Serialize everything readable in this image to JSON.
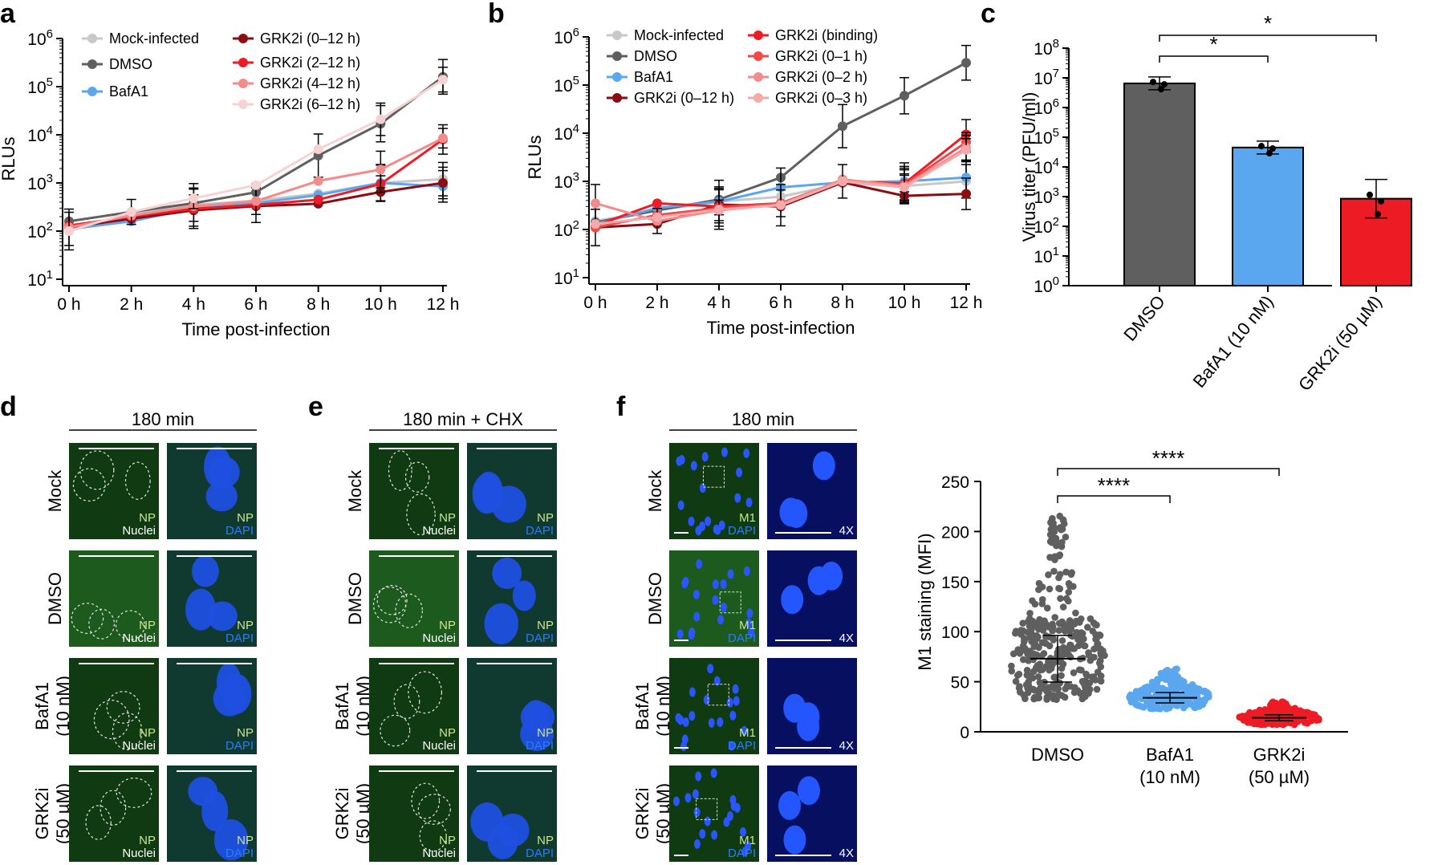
{
  "panels": [
    "a",
    "b",
    "c",
    "d",
    "e",
    "f"
  ],
  "colors": {
    "mock": "#c8c8c8",
    "dmso": "#5f5f5f",
    "bafa1": "#5aa7f0",
    "grk_dark": "#8b0d14",
    "grk_red": "#ed1c24",
    "grk_salmon": "#f28c8c",
    "grk_pale": "#f7d2d2",
    "grk_mid": "#ee4a4a",
    "np_green": "#c8e68c",
    "dapi_blue": "#2a7cff"
  },
  "time_labels": [
    "0 h",
    "2 h",
    "4 h",
    "6 h",
    "8 h",
    "10 h",
    "12 h"
  ],
  "log_ticks": [
    {
      "base": "10",
      "exp": "1"
    },
    {
      "base": "10",
      "exp": "2"
    },
    {
      "base": "10",
      "exp": "3"
    },
    {
      "base": "10",
      "exp": "4"
    },
    {
      "base": "10",
      "exp": "5"
    },
    {
      "base": "10",
      "exp": "6"
    }
  ],
  "c_ticks": [
    {
      "base": "10",
      "exp": "0"
    },
    {
      "base": "10",
      "exp": "1"
    },
    {
      "base": "10",
      "exp": "2"
    },
    {
      "base": "10",
      "exp": "3"
    },
    {
      "base": "10",
      "exp": "4"
    },
    {
      "base": "10",
      "exp": "5"
    },
    {
      "base": "10",
      "exp": "6"
    },
    {
      "base": "10",
      "exp": "7"
    },
    {
      "base": "10",
      "exp": "8"
    }
  ],
  "chart_data": [
    {
      "id": "a",
      "type": "line",
      "ylabel": "RLUs",
      "xlabel": "Time post-infection",
      "yscale": "log",
      "ylim": [
        10,
        1000000
      ],
      "x": [
        0,
        2,
        4,
        6,
        8,
        10,
        12
      ],
      "series": [
        {
          "name": "Mock-infected",
          "color": "#c8c8c8",
          "values": [
            100,
            230,
            350,
            430,
            600,
            1000,
            1200
          ]
        },
        {
          "name": "DMSO",
          "color": "#5f5f5f",
          "values": [
            160,
            250,
            380,
            640,
            3700,
            17000,
            160000
          ]
        },
        {
          "name": "BafA1",
          "color": "#5aa7f0",
          "values": [
            110,
            160,
            300,
            380,
            560,
            1000,
            850
          ]
        },
        {
          "name": "GRK2i (0–12 h)",
          "color": "#8b0d14",
          "values": [
            120,
            180,
            270,
            330,
            370,
            650,
            1000
          ]
        },
        {
          "name": "GRK2i (2–12 h)",
          "color": "#ed1c24",
          "values": [
            130,
            200,
            290,
            350,
            450,
            950,
            8000
          ]
        },
        {
          "name": "GRK2i (4–12 h)",
          "color": "#f28c8c",
          "values": [
            120,
            210,
            330,
            420,
            1100,
            1900,
            8500
          ]
        },
        {
          "name": "GRK2i (6–12 h)",
          "color": "#f7d2d2",
          "values": [
            100,
            250,
            480,
            900,
            5000,
            21000,
            140000
          ]
        }
      ]
    },
    {
      "id": "b",
      "type": "line",
      "ylabel": "RLUs",
      "xlabel": "Time post-infection",
      "yscale": "log",
      "ylim": [
        10,
        1000000
      ],
      "x": [
        0,
        2,
        4,
        6,
        8,
        10,
        12
      ],
      "series": [
        {
          "name": "Mock-infected",
          "color": "#c8c8c8",
          "values": [
            150,
            250,
            380,
            480,
            900,
            800,
            1000
          ]
        },
        {
          "name": "DMSO",
          "color": "#5f5f5f",
          "values": [
            140,
            250,
            420,
            1200,
            14000,
            60000,
            290000
          ]
        },
        {
          "name": "BafA1",
          "color": "#5aa7f0",
          "values": [
            130,
            280,
            380,
            750,
            950,
            1000,
            1200
          ]
        },
        {
          "name": "GRK2i (0–12 h)",
          "color": "#8b0d14",
          "values": [
            110,
            130,
            330,
            300,
            950,
            500,
            550
          ]
        },
        {
          "name": "GRK2i (binding)",
          "color": "#ed1c24",
          "values": [
            120,
            350,
            300,
            350,
            1000,
            900,
            9500
          ]
        },
        {
          "name": "GRK2i (0–1 h)",
          "color": "#ee4a4a",
          "values": [
            110,
            200,
            280,
            350,
            1050,
            850,
            6500
          ]
        },
        {
          "name": "GRK2i (0–2 h)",
          "color": "#f28c8c",
          "values": [
            350,
            150,
            250,
            330,
            1100,
            800,
            5000
          ]
        },
        {
          "name": "GRK2i (0–3 h)",
          "color": "#f4aaaa",
          "values": [
            130,
            180,
            260,
            320,
            1000,
            750,
            4500
          ]
        }
      ]
    },
    {
      "id": "c",
      "type": "bar",
      "ylabel": "Virus titer (PFU/ml)",
      "yscale": "log",
      "ylim": [
        1,
        100000000
      ],
      "categories": [
        "DMSO",
        "BafA1 (10 nM)",
        "GRK2i (50 µM)"
      ],
      "values": [
        6500000,
        45000,
        850
      ],
      "colors": [
        "#5f5f5f",
        "#5aa7f0",
        "#ed1c24"
      ],
      "significance": [
        "*",
        "*"
      ]
    },
    {
      "id": "f",
      "type": "scatter",
      "ylabel": "M1 staining (MFI)",
      "ylim": [
        0,
        250
      ],
      "yticks": [
        "0",
        "50",
        "100",
        "150",
        "200",
        "250"
      ],
      "categories": [
        "DMSO",
        "BafA1 (10 nM)",
        "GRK2i (50 µM)"
      ],
      "medians": [
        73,
        34,
        14
      ],
      "ranges": [
        [
          22,
          216
        ],
        [
          20,
          63
        ],
        [
          5,
          30
        ]
      ],
      "colors": [
        "#5f5f5f",
        "#5aa7f0",
        "#ed1c24"
      ],
      "significance": [
        "****",
        "****"
      ]
    }
  ],
  "legend_a": [
    "Mock-infected",
    "DMSO",
    "BafA1",
    "GRK2i (0–12 h)",
    "GRK2i (2–12 h)",
    "GRK2i (4–12 h)",
    "GRK2i (6–12 h)"
  ],
  "legend_b": [
    "Mock-infected",
    "DMSO",
    "BafA1",
    "GRK2i (0–12 h)",
    "GRK2i (binding)",
    "GRK2i (0–1 h)",
    "GRK2i (0–2 h)",
    "GRK2i (0–3 h)"
  ],
  "c_categories": [
    "DMSO",
    "BafA1 (10 nM)",
    "GRK2i (50 µM)"
  ],
  "f_categories": [
    [
      "DMSO",
      ""
    ],
    [
      "BafA1",
      "(10 nM)"
    ],
    [
      "GRK2i",
      "(50 µM)"
    ]
  ],
  "micro": {
    "d_header": "180 min",
    "e_header": "180 min + CHX",
    "f_header": "180 min",
    "rows_de": [
      [
        "Mock",
        ""
      ],
      [
        "DMSO",
        ""
      ],
      [
        "BafA1",
        "(10 nM)"
      ],
      [
        "GRK2i",
        "(50 µM)"
      ]
    ],
    "rows_f": [
      [
        "Mock",
        ""
      ],
      [
        "DMSO",
        ""
      ],
      [
        "BafA1",
        "(10 nM)"
      ],
      [
        "GRK2i",
        "(50 µM)"
      ]
    ],
    "np": "NP",
    "nuclei": "Nuclei",
    "dapi": "DAPI",
    "m1": "M1",
    "zoom": "4X"
  }
}
